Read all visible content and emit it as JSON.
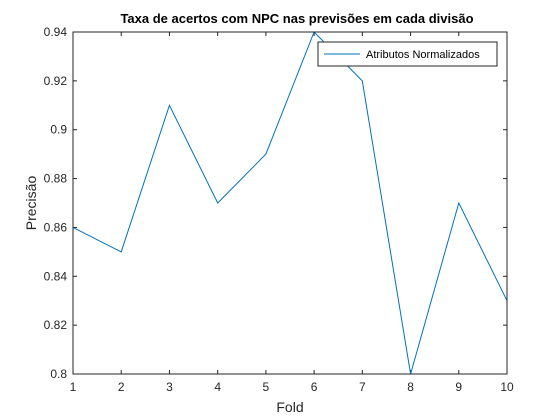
{
  "chart_data": {
    "type": "line",
    "title": "Taxa de acertos com NPC nas previsões em cada divisão",
    "xlabel": "Fold",
    "ylabel": "Precisão",
    "xlim": [
      1,
      10
    ],
    "ylim": [
      0.8,
      0.94
    ],
    "x_ticks": [
      "1",
      "2",
      "3",
      "4",
      "5",
      "6",
      "7",
      "8",
      "9",
      "10"
    ],
    "y_ticks": [
      "0.8",
      "0.82",
      "0.84",
      "0.86",
      "0.88",
      "0.9",
      "0.92",
      "0.94"
    ],
    "grid": false,
    "legend_position": "top-right",
    "x": [
      1,
      2,
      3,
      4,
      5,
      6,
      7,
      8,
      9,
      10
    ],
    "series": [
      {
        "name": "Atributos Normalizados",
        "color": "#0072BD",
        "values": [
          0.86,
          0.85,
          0.91,
          0.87,
          0.89,
          0.94,
          0.92,
          0.8,
          0.87,
          0.83
        ]
      }
    ]
  }
}
